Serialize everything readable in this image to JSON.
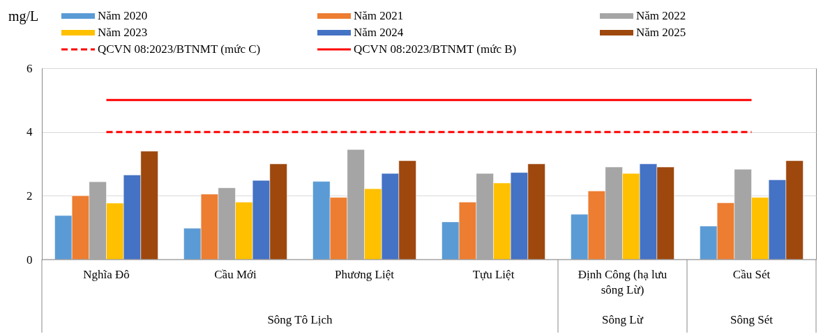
{
  "chart_data": {
    "type": "bar",
    "ylabel": "mg/L",
    "categories": [
      "Nghĩa Đô",
      "Cầu Mới",
      "Phương Liệt",
      "Tựu Liệt",
      "Định Công (hạ lưu sông Lừ)",
      "Cầu Sét"
    ],
    "series": [
      {
        "name": "Năm 2020",
        "color": "#5b9bd5",
        "values": [
          1.38,
          0.98,
          2.45,
          1.18,
          1.42,
          1.05
        ]
      },
      {
        "name": "Năm 2021",
        "color": "#ed7d31",
        "values": [
          2.0,
          2.05,
          1.95,
          1.8,
          2.15,
          1.78
        ]
      },
      {
        "name": "Năm 2022",
        "color": "#a5a5a5",
        "values": [
          2.44,
          2.25,
          3.45,
          2.7,
          2.9,
          2.83
        ]
      },
      {
        "name": "Năm 2023",
        "color": "#ffc000",
        "values": [
          1.77,
          1.8,
          2.22,
          2.4,
          2.7,
          1.95
        ]
      },
      {
        "name": "Năm 2024",
        "color": "#4472c4",
        "values": [
          2.65,
          2.48,
          2.7,
          2.73,
          3.0,
          2.5
        ]
      },
      {
        "name": "Năm 2025",
        "color": "#9e480e",
        "values": [
          3.4,
          3.0,
          3.1,
          3.0,
          2.9,
          3.1
        ]
      }
    ],
    "ylim": [
      0,
      6
    ],
    "yticks": [
      0,
      2,
      4,
      6
    ],
    "grid": "y",
    "legend": "top",
    "ref_lines": [
      {
        "axis": "y",
        "value": 4,
        "color": "#ff0000",
        "line_style": "dashed"
      },
      {
        "axis": "y",
        "value": 5,
        "color": "#ff0000",
        "line_style": "solid"
      }
    ],
    "annotations": [
      "QCVN 08:2023/BTNMT (mức C)",
      "QCVN 08:2023/BTNMT (mức B)",
      "Sông Tô Lịch",
      "Sông Lừ",
      "Sông Sét"
    ]
  }
}
